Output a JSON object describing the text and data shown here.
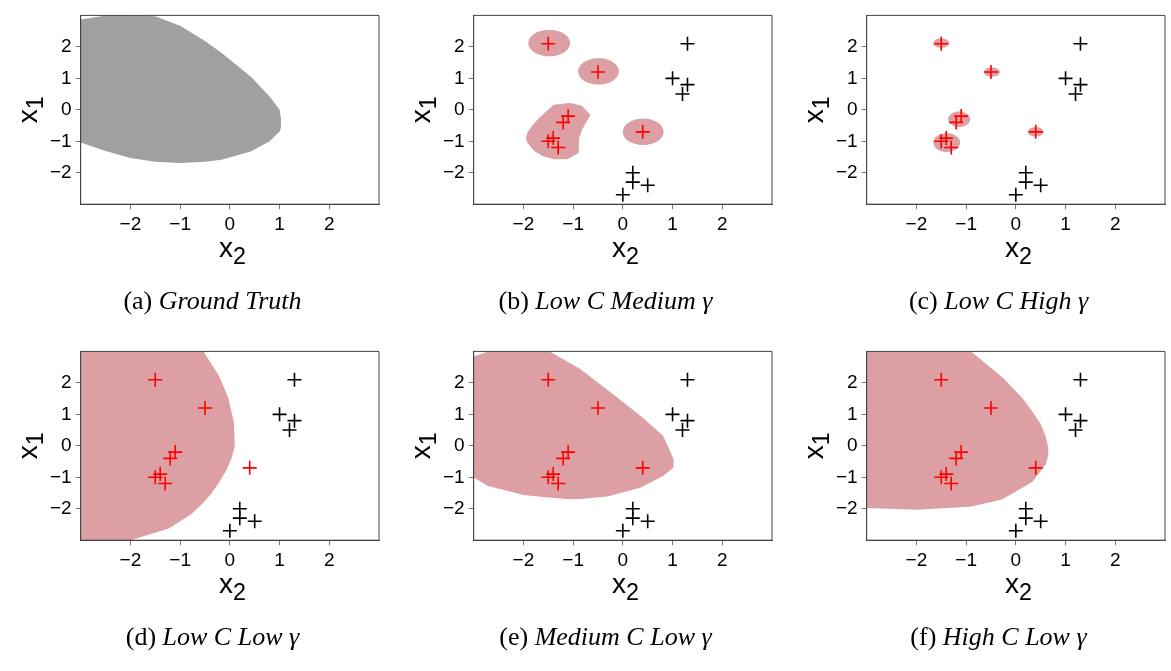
{
  "chart_data": [
    {
      "type": "scatter",
      "title": "(a) Ground Truth",
      "xlabel": "x$_{2}$",
      "ylabel": "x$_{1}$",
      "xlim": [
        -3,
        3
      ],
      "ylim": [
        -3,
        3
      ],
      "xticks": [
        -2,
        -1,
        0,
        1,
        2
      ],
      "yticks": [
        -2,
        -1,
        0,
        1,
        2
      ]
    },
    {
      "type": "scatter",
      "title": "(b) Low C Medium γ",
      "xlabel": "x$_{2}$",
      "ylabel": "x$_{1}$",
      "xlim": [
        -3,
        3
      ],
      "ylim": [
        -3,
        3
      ],
      "xticks": [
        -2,
        -1,
        0,
        1,
        2
      ],
      "yticks": [
        -2,
        -1,
        0,
        1,
        2
      ],
      "marker": "cross",
      "series": [
        {
          "color": "#ff0000",
          "x": [
            -1.5,
            -0.5,
            -1.1,
            -1.2,
            -1.4,
            -1.5,
            -1.3,
            0.4
          ],
          "values": [
            2.1,
            1.2,
            -0.2,
            -0.4,
            -0.9,
            -1.0,
            -1.2,
            -0.7
          ]
        },
        {
          "color": "#000000",
          "x": [
            1.3,
            1.0,
            1.3,
            1.2,
            0.2,
            0.2,
            0.5,
            0
          ],
          "values": [
            2.1,
            1.0,
            0.8,
            0.5,
            -2.0,
            -2.3,
            -2.4,
            -2.7
          ]
        }
      ]
    },
    {
      "type": "scatter",
      "title": "(c) Low C High γ",
      "xlabel": "x$_{2}$",
      "ylabel": "x$_{1}$",
      "xlim": [
        -3,
        3
      ],
      "ylim": [
        -3,
        3
      ],
      "xticks": [
        -2,
        -1,
        0,
        1,
        2
      ],
      "yticks": [
        -2,
        -1,
        0,
        1,
        2
      ],
      "marker": "cross",
      "series": [
        {
          "color": "#ff0000",
          "x": [
            -1.5,
            -0.5,
            -1.1,
            -1.2,
            -1.4,
            -1.5,
            -1.3,
            0.4
          ],
          "values": [
            2.1,
            1.2,
            -0.2,
            -0.4,
            -0.9,
            -1.0,
            -1.2,
            -0.7
          ]
        },
        {
          "color": "#000000",
          "x": [
            1.3,
            1.0,
            1.3,
            1.2,
            0.2,
            0.2,
            0.5,
            0
          ],
          "values": [
            2.1,
            1.0,
            0.8,
            0.5,
            -2.0,
            -2.3,
            -2.4,
            -2.7
          ]
        }
      ]
    },
    {
      "type": "scatter",
      "title": "(d) Low C Low γ",
      "xlabel": "x$_{2}$",
      "ylabel": "x$_{1}$",
      "xlim": [
        -3,
        3
      ],
      "ylim": [
        -3,
        3
      ],
      "xticks": [
        -2,
        -1,
        0,
        1,
        2
      ],
      "yticks": [
        -2,
        -1,
        0,
        1,
        2
      ],
      "marker": "cross",
      "series": [
        {
          "color": "#ff0000",
          "x": [
            -1.5,
            -0.5,
            -1.1,
            -1.2,
            -1.4,
            -1.5,
            -1.3,
            0.4
          ],
          "values": [
            2.1,
            1.2,
            -0.2,
            -0.4,
            -0.9,
            -1.0,
            -1.2,
            -0.7
          ]
        },
        {
          "color": "#000000",
          "x": [
            1.3,
            1.0,
            1.3,
            1.2,
            0.2,
            0.2,
            0.5,
            0
          ],
          "values": [
            2.1,
            1.0,
            0.8,
            0.5,
            -2.0,
            -2.3,
            -2.4,
            -2.7
          ]
        }
      ]
    },
    {
      "type": "scatter",
      "title": "(e) Medium C Low γ",
      "xlabel": "x$_{2}$",
      "ylabel": "x$_{1}$",
      "xlim": [
        -3,
        3
      ],
      "ylim": [
        -3,
        3
      ],
      "xticks": [
        -2,
        -1,
        0,
        1,
        2
      ],
      "yticks": [
        -2,
        -1,
        0,
        1,
        2
      ],
      "marker": "cross",
      "series": [
        {
          "color": "#ff0000",
          "x": [
            -1.5,
            -0.5,
            -1.1,
            -1.2,
            -1.4,
            -1.5,
            -1.3,
            0.4
          ],
          "values": [
            2.1,
            1.2,
            -0.2,
            -0.4,
            -0.9,
            -1.0,
            -1.2,
            -0.7
          ]
        },
        {
          "color": "#000000",
          "x": [
            1.3,
            1.0,
            1.3,
            1.2,
            0.2,
            0.2,
            0.5,
            0
          ],
          "values": [
            2.1,
            1.0,
            0.8,
            0.5,
            -2.0,
            -2.3,
            -2.4,
            -2.7
          ]
        }
      ]
    },
    {
      "type": "scatter",
      "title": "(f) High C Low γ",
      "xlabel": "x$_{2}$",
      "ylabel": "x$_{1}$",
      "xlim": [
        -3,
        3
      ],
      "ylim": [
        -3,
        3
      ],
      "xticks": [
        -2,
        -1,
        0,
        1,
        2
      ],
      "yticks": [
        -2,
        -1,
        0,
        1,
        2
      ],
      "marker": "cross",
      "series": [
        {
          "color": "#ff0000",
          "x": [
            -1.5,
            -0.5,
            -1.1,
            -1.2,
            -1.4,
            -1.5,
            -1.3,
            0.4
          ],
          "values": [
            2.1,
            1.2,
            -0.2,
            -0.4,
            -0.9,
            -1.0,
            -1.2,
            -0.7
          ]
        },
        {
          "color": "#000000",
          "x": [
            1.3,
            1.0,
            1.3,
            1.2,
            0.2,
            0.2,
            0.5,
            0
          ],
          "values": [
            2.1,
            1.0,
            0.8,
            0.5,
            -2.0,
            -2.3,
            -2.4,
            -2.7
          ]
        }
      ]
    }
  ]
}
